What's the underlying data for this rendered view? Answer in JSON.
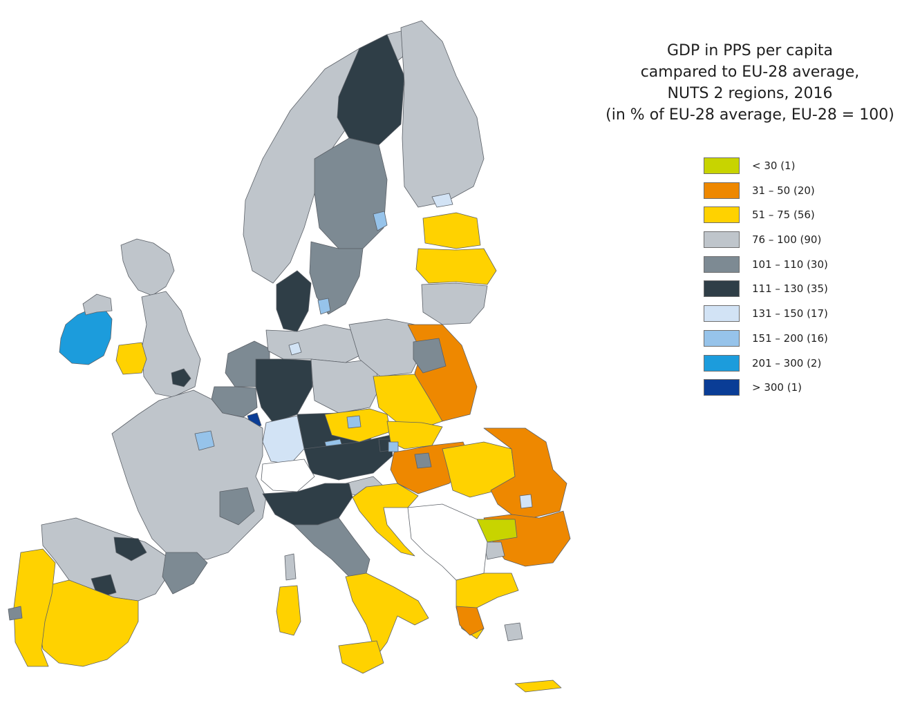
{
  "title": {
    "line1": "GDP in PPS per capita",
    "line2": "campared to EU-28 average,",
    "line3": "NUTS 2 regions, 2016",
    "line4": "(in % of EU-28 average, EU-28 = 100)"
  },
  "legend": [
    {
      "label": "< 30 (1)",
      "color": "#c8d400"
    },
    {
      "label": "31 – 50 (20)",
      "color": "#ee8800"
    },
    {
      "label": "51 – 75 (56)",
      "color": "#ffd200"
    },
    {
      "label": "76 – 100 (90)",
      "color": "#bfc5cb"
    },
    {
      "label": "101 – 110 (30)",
      "color": "#7d8a93"
    },
    {
      "label": "111 – 130 (35)",
      "color": "#2f3e47"
    },
    {
      "label": "131 – 150 (17)",
      "color": "#d2e3f5"
    },
    {
      "label": "151 – 200 (16)",
      "color": "#96c3ea"
    },
    {
      "label": "201 – 300 (2)",
      "color": "#1c9cdc"
    },
    {
      "label": "> 300 (1)",
      "color": "#0a3d96"
    }
  ],
  "map": {
    "regions": [
      {
        "name": "Iceland-outline",
        "band": 3
      },
      {
        "name": "Ireland",
        "band": 8
      },
      {
        "name": "Northern Ireland",
        "band": 3
      },
      {
        "name": "Scotland",
        "band": 3
      },
      {
        "name": "England North",
        "band": 3
      },
      {
        "name": "London",
        "band": 5
      },
      {
        "name": "Wales",
        "band": 2
      },
      {
        "name": "Norway North",
        "band": 3
      },
      {
        "name": "Sweden North",
        "band": 5
      },
      {
        "name": "Sweden Middle",
        "band": 4
      },
      {
        "name": "Stockholm",
        "band": 7
      },
      {
        "name": "Sweden South",
        "band": 4
      },
      {
        "name": "Finland",
        "band": 3
      },
      {
        "name": "Helsinki",
        "band": 6
      },
      {
        "name": "Estonia",
        "band": 2
      },
      {
        "name": "Latvia",
        "band": 2
      },
      {
        "name": "Lithuania",
        "band": 3
      },
      {
        "name": "Denmark",
        "band": 5
      },
      {
        "name": "Copenhagen",
        "band": 7
      },
      {
        "name": "Netherlands",
        "band": 4
      },
      {
        "name": "Belgium",
        "band": 4
      },
      {
        "name": "Luxembourg",
        "band": 9
      },
      {
        "name": "Germany North",
        "band": 3
      },
      {
        "name": "Hamburg",
        "band": 6
      },
      {
        "name": "Germany West",
        "band": 5
      },
      {
        "name": "Germany East",
        "band": 3
      },
      {
        "name": "Bavaria",
        "band": 5
      },
      {
        "name": "Munich",
        "band": 7
      },
      {
        "name": "Baden-Wuerttemberg",
        "band": 6
      },
      {
        "name": "Poland North",
        "band": 3
      },
      {
        "name": "Poland East",
        "band": 1
      },
      {
        "name": "Warsaw",
        "band": 4
      },
      {
        "name": "Poland South",
        "band": 2
      },
      {
        "name": "Czechia",
        "band": 2
      },
      {
        "name": "Prague",
        "band": 7
      },
      {
        "name": "Austria",
        "band": 5
      },
      {
        "name": "Vienna",
        "band": 5
      },
      {
        "name": "Slovakia",
        "band": 2
      },
      {
        "name": "Bratislava",
        "band": 7
      },
      {
        "name": "Hungary",
        "band": 1
      },
      {
        "name": "Budapest",
        "band": 4
      },
      {
        "name": "Slovenia",
        "band": 3
      },
      {
        "name": "Croatia",
        "band": 2
      },
      {
        "name": "Romania West",
        "band": 2
      },
      {
        "name": "Romania East",
        "band": 1
      },
      {
        "name": "Bucharest",
        "band": 6
      },
      {
        "name": "Bulgaria",
        "band": 1
      },
      {
        "name": "Bulgaria NW",
        "band": 0
      },
      {
        "name": "Sofia",
        "band": 3
      },
      {
        "name": "France",
        "band": 3
      },
      {
        "name": "Paris",
        "band": 7
      },
      {
        "name": "Lyon",
        "band": 4
      },
      {
        "name": "Switzerland",
        "band": -1
      },
      {
        "name": "Italy North",
        "band": 5
      },
      {
        "name": "Italy Centre",
        "band": 4
      },
      {
        "name": "Italy South",
        "band": 2
      },
      {
        "name": "Sicily",
        "band": 2
      },
      {
        "name": "Sardinia",
        "band": 2
      },
      {
        "name": "Corsica",
        "band": 3
      },
      {
        "name": "Spain North",
        "band": 3
      },
      {
        "name": "Basque",
        "band": 5
      },
      {
        "name": "Madrid",
        "band": 5
      },
      {
        "name": "Catalonia",
        "band": 4
      },
      {
        "name": "Spain South",
        "band": 2
      },
      {
        "name": "Portugal",
        "band": 2
      },
      {
        "name": "Lisbon",
        "band": 4
      },
      {
        "name": "Greece North",
        "band": 2
      },
      {
        "name": "Greece West",
        "band": 1
      },
      {
        "name": "Athens",
        "band": 3
      },
      {
        "name": "Crete",
        "band": 2
      },
      {
        "name": "Cyprus",
        "band": 3
      },
      {
        "name": "Balkans",
        "band": -1
      }
    ]
  }
}
